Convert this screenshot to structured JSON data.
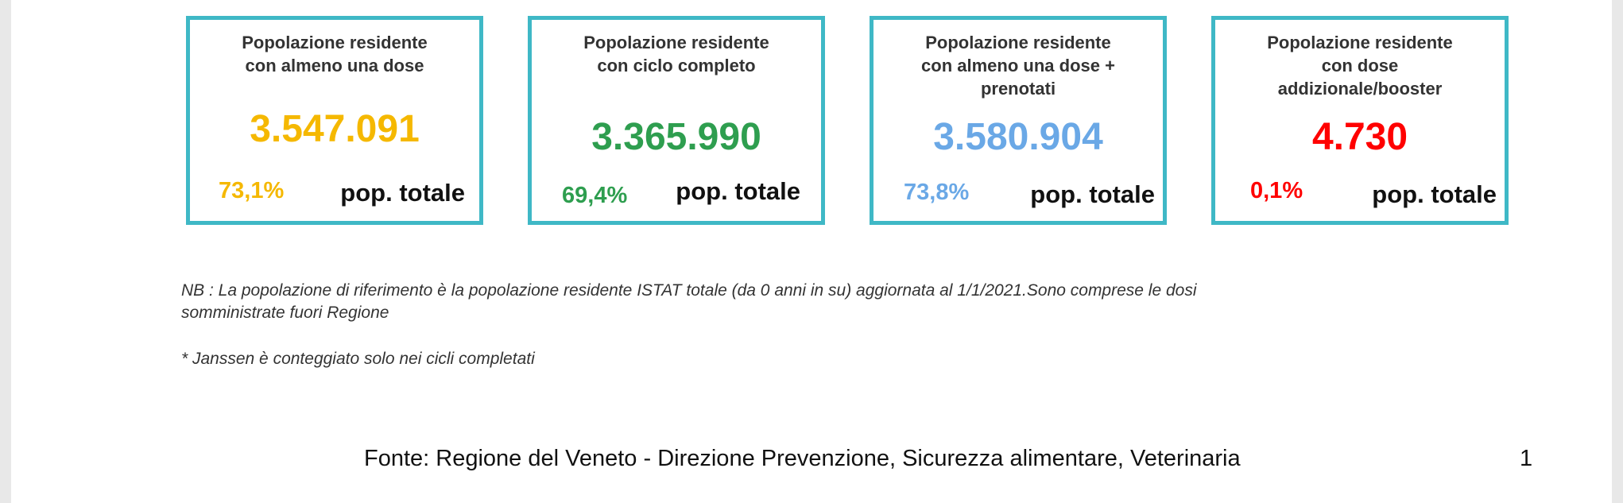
{
  "cards": [
    {
      "title_lines": [
        "Popolazione residente",
        "con almeno una dose"
      ],
      "value": "3.547.091",
      "percent": "73,1%",
      "pop_label": "pop. totale",
      "color": "#f5b800"
    },
    {
      "title_lines": [
        "Popolazione residente",
        "con ciclo completo"
      ],
      "value": "3.365.990",
      "percent": "69,4%",
      "pop_label": "pop. totale",
      "color": "#2e9e4f"
    },
    {
      "title_lines": [
        "Popolazione residente",
        "con almeno una dose +",
        "prenotati"
      ],
      "value": "3.580.904",
      "percent": "73,8%",
      "pop_label": "pop. totale",
      "color": "#6aa8e6"
    },
    {
      "title_lines": [
        "Popolazione residente",
        "con dose",
        "addizionale/booster"
      ],
      "value": "4.730",
      "percent": "0,1%",
      "pop_label": "pop. totale",
      "color": "#ff0000"
    }
  ],
  "card_border_color": "#3fb8c6",
  "notes": {
    "nb_line1": "NB : La popolazione di riferimento è la popolazione residente ISTAT totale (da 0 anni in su) aggiornata  al 1/1/2021.Sono comprese le dosi",
    "nb_line2": "somministrate fuori Regione",
    "janssen": "* Janssen è conteggiato solo nei cicli completati"
  },
  "footer": {
    "source": "Fonte: Regione del Veneto - Direzione Prevenzione, Sicurezza alimentare, Veterinaria",
    "page_number": "1"
  }
}
